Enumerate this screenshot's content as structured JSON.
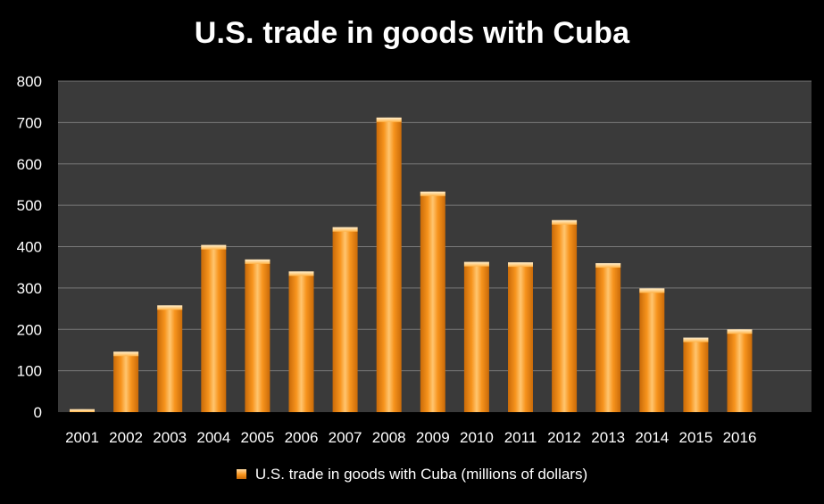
{
  "chart_data": {
    "type": "bar",
    "title": "U.S. trade in goods with Cuba",
    "categories": [
      "2001",
      "2002",
      "2003",
      "2004",
      "2005",
      "2006",
      "2007",
      "2008",
      "2009",
      "2010",
      "2011",
      "2012",
      "2013",
      "2014",
      "2015",
      "2016"
    ],
    "series": [
      {
        "name": "U.S. trade in goods with Cuba (millions of dollars)",
        "values": [
          7,
          146,
          258,
          404,
          369,
          340,
          447,
          712,
          533,
          363,
          362,
          464,
          360,
          299,
          180,
          200
        ]
      }
    ],
    "ylim": [
      0,
      800
    ],
    "yticks": [
      0,
      100,
      200,
      300,
      400,
      500,
      600,
      700,
      800
    ],
    "grid": true,
    "legend": "bottom",
    "colors": {
      "background": "#000000",
      "plot_area": "#3a3a3a",
      "grid": "#7a7a7a",
      "bar_light": "#ffd9a0",
      "bar_mid": "#f7941d",
      "bar_dark": "#c96a08",
      "text": "#ffffff"
    }
  }
}
